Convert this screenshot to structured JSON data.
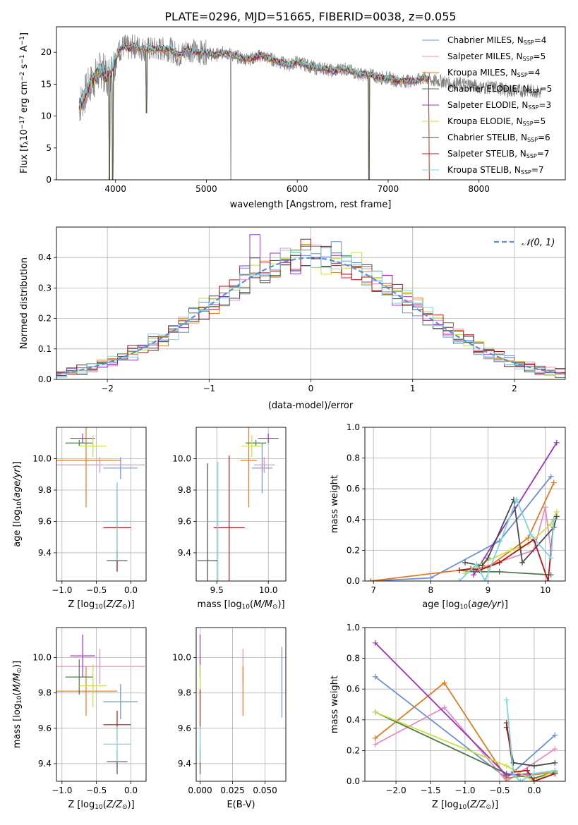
{
  "figure_title": "PLATE=0296, MJD=51665, FIBERID=0038, z=0.055",
  "series_meta": [
    {
      "label_main": "Chabrier MILES, N",
      "label_sub": "SSP",
      "label_tail": "=4",
      "color": "#6A8FDB"
    },
    {
      "label_main": "Salpeter MILES, N",
      "label_sub": "SSP",
      "label_tail": "=5",
      "color": "#E88DC1"
    },
    {
      "label_main": "Kroupa MILES, N",
      "label_sub": "SSP",
      "label_tail": "=4",
      "color": "#E07B20"
    },
    {
      "label_main": "Chabrier ELODIE, N",
      "label_sub": "SSP",
      "label_tail": "=5",
      "color": "#4C7A4C"
    },
    {
      "label_main": "Salpeter ELODIE, N",
      "label_sub": "SSP",
      "label_tail": "=3",
      "color": "#9B30C0"
    },
    {
      "label_main": "Kroupa ELODIE, N",
      "label_sub": "SSP",
      "label_tail": "=5",
      "color": "#C8E040"
    },
    {
      "label_main": "Chabrier STELIB, N",
      "label_sub": "SSP",
      "label_tail": "=6",
      "color": "#4A4A4A"
    },
    {
      "label_main": "Salpeter STELIB, N",
      "label_sub": "SSP",
      "label_tail": "=7",
      "color": "#B01818"
    },
    {
      "label_main": "Kroupa STELIB, N",
      "label_sub": "SSP",
      "label_tail": "=7",
      "color": "#78D8E0"
    }
  ],
  "chart_data": [
    {
      "type": "line",
      "id": "spectrum",
      "xlabel": "wavelength [Angstrom, rest frame]",
      "ylabel_main": "Flux [f",
      "ylabel_sub": "λ",
      "ylabel_mid": "10",
      "ylabel_sup1": "−17",
      "ylabel_rest": " erg cm",
      "ylabel_sup2": "−2",
      "ylabel_s": " s",
      "ylabel_sup3": "−1",
      "ylabel_a": " A",
      "ylabel_sup4": "−1",
      "ylabel_end": "]",
      "xlim": [
        3350,
        8950
      ],
      "ylim": [
        0,
        24
      ],
      "xticks": [
        4000,
        5000,
        6000,
        7000,
        8000
      ],
      "yticks": [
        0,
        5,
        10,
        15,
        20
      ],
      "data_color": "#808080",
      "data_x": [
        3600,
        3650,
        3700,
        3750,
        3800,
        3850,
        3900,
        3950,
        4000,
        4050,
        4100,
        4150,
        4200,
        4300,
        4400,
        4500,
        4600,
        4700,
        4800,
        4900,
        5000,
        5100,
        5200,
        5300,
        5400,
        5500,
        5600,
        5700,
        5800,
        5900,
        6000,
        6100,
        6200,
        6300,
        6400,
        6500,
        6600,
        6700,
        6800,
        6900,
        7000,
        7100,
        7200,
        7300,
        7400,
        7500,
        7600,
        7700,
        7800,
        7900,
        8000,
        8100,
        8200,
        8300,
        8400,
        8500,
        8600,
        8700
      ],
      "data_y": [
        11.5,
        13,
        14.5,
        15.5,
        16.5,
        17.5,
        16,
        17,
        19,
        20.5,
        21,
        20.5,
        21,
        20.5,
        20.5,
        20.5,
        20.5,
        19.5,
        20.5,
        20,
        20,
        19.5,
        20,
        19.5,
        19,
        19,
        19.5,
        19,
        18.5,
        18,
        18.5,
        18,
        17.5,
        17.5,
        17,
        17.5,
        17,
        16.5,
        16.5,
        16,
        16,
        15.5,
        15.5,
        15.5,
        16,
        15.5,
        15.5,
        15,
        15,
        15,
        14.5,
        14.5,
        14.5,
        14,
        14,
        14,
        14,
        13.5
      ],
      "model_xrange": [
        3600,
        7450
      ],
      "dips": [
        {
          "x": 3934,
          "y": 0
        },
        {
          "x": 3968,
          "y": 0
        },
        {
          "x": 4340,
          "y": 10.5
        },
        {
          "x": 6790,
          "y": 0
        }
      ]
    },
    {
      "type": "histogram",
      "id": "residuals",
      "xlabel": "(data-model)/error",
      "ylabel": "Normed distribution",
      "xlim": [
        -2.5,
        2.5
      ],
      "ylim": [
        0,
        0.5
      ],
      "xticks": [
        -2,
        -1,
        0,
        1,
        2
      ],
      "yticks": [
        0,
        0.1,
        0.2,
        0.3,
        0.4
      ],
      "bin_width": 0.1,
      "gaussian_legend": "𝒩(0, 1)",
      "gaussian_color": "#5B8DD9"
    },
    {
      "type": "errorbar",
      "id": "age_vs_Z",
      "xlabel_main": "Z [log",
      "xlabel_sub": "10",
      "xlabel_rest": "(Z/Z",
      "xlabel_sub2": "⊙",
      "xlabel_end": ")]",
      "ylabel_main": "age  [log",
      "ylabel_sub": "10",
      "ylabel_rest": "(age/yr)]",
      "xlim": [
        -1.08,
        0.22
      ],
      "ylim": [
        9.22,
        10.2
      ],
      "xticks": [
        -1.0,
        -0.5,
        0.0
      ],
      "xtick_labels": [
        "−1.0",
        "−0.5",
        "0.0"
      ],
      "yticks": [
        9.4,
        9.6,
        9.8,
        10.0
      ],
      "points": [
        {
          "series": 0,
          "x": -0.15,
          "y": 9.94,
          "xerr": 0.25,
          "yerr": 0.07
        },
        {
          "series": 1,
          "x": -0.45,
          "y": 9.96,
          "xerr": 0.65,
          "yerr": 0.05
        },
        {
          "series": 2,
          "x": -0.65,
          "y": 9.99,
          "xerr": 0.5,
          "yerr": 0.3
        },
        {
          "series": 3,
          "x": -0.75,
          "y": 10.1,
          "xerr": 0.2,
          "yerr": 0.02
        },
        {
          "series": 4,
          "x": -0.7,
          "y": 10.13,
          "xerr": 0.18,
          "yerr": 0.03
        },
        {
          "series": 5,
          "x": -0.55,
          "y": 10.08,
          "xerr": 0.2,
          "yerr": 0.07
        },
        {
          "series": 6,
          "x": -0.2,
          "y": 9.35,
          "xerr": 0.15,
          "yerr": 0.07
        },
        {
          "series": 7,
          "x": -0.2,
          "y": 9.56,
          "xerr": 0.2,
          "yerr": 0.28
        },
        {
          "series": 8,
          "x": -0.2,
          "y": 9.6,
          "xerr": 0.2,
          "yerr": 0.25
        }
      ]
    },
    {
      "type": "errorbar",
      "id": "age_vs_mass",
      "xlabel_main": "mass [log",
      "xlabel_sub": "10",
      "xlabel_rest": "(M/M",
      "xlabel_sub2": "⊙",
      "xlabel_end": ")]",
      "xlim": [
        9.3,
        10.17
      ],
      "ylim": [
        9.22,
        10.2
      ],
      "xticks": [
        9.5,
        10.0
      ],
      "xtick_labels": [
        "9.5",
        "10.0"
      ],
      "yticks": [
        9.4,
        9.6,
        9.8,
        10.0
      ],
      "points": [
        {
          "series": 0,
          "x": 9.94,
          "y": 9.94,
          "xerr": 0.1,
          "yerr": 0.16
        },
        {
          "series": 1,
          "x": 9.96,
          "y": 9.96,
          "xerr": 0.1,
          "yerr": 0.05
        },
        {
          "series": 2,
          "x": 9.81,
          "y": 9.99,
          "xerr": 0.08,
          "yerr": 0.3
        },
        {
          "series": 3,
          "x": 9.88,
          "y": 10.1,
          "xerr": 0.1,
          "yerr": 0.02
        },
        {
          "series": 4,
          "x": 10.0,
          "y": 10.13,
          "xerr": 0.1,
          "yerr": 0.03
        },
        {
          "series": 5,
          "x": 9.84,
          "y": 10.08,
          "xerr": 0.1,
          "yerr": 0.07
        },
        {
          "series": 6,
          "x": 9.41,
          "y": 9.35,
          "xerr": 0.1,
          "yerr": 0.62
        },
        {
          "series": 7,
          "x": 9.62,
          "y": 9.56,
          "xerr": 0.15,
          "yerr": 0.46
        },
        {
          "series": 8,
          "x": 9.51,
          "y": 9.6,
          "xerr": 0.1,
          "yerr": 0.38
        }
      ]
    },
    {
      "type": "line",
      "id": "massweight_vs_age",
      "xlabel_main": "age  [log",
      "xlabel_sub": "10",
      "xlabel_rest": "(age/yr)]",
      "ylabel": "mass weight",
      "xlim": [
        6.85,
        10.35
      ],
      "ylim": [
        0,
        1.0
      ],
      "xticks": [
        7,
        8,
        9,
        10
      ],
      "yticks": [
        0.0,
        0.2,
        0.4,
        0.6,
        0.8,
        1.0
      ],
      "series": [
        {
          "series": 0,
          "x": [
            6.95,
            8.0,
            9.2,
            10.1
          ],
          "y": [
            0.0,
            0.02,
            0.26,
            0.68
          ]
        },
        {
          "series": 1,
          "x": [
            8.6,
            9.8,
            10.0,
            10.1
          ],
          "y": [
            0.05,
            0.2,
            0.48,
            0.2
          ]
        },
        {
          "series": 2,
          "x": [
            6.95,
            8.5,
            9.0,
            9.7,
            10.15
          ],
          "y": [
            0.0,
            0.07,
            0.09,
            0.28,
            0.64
          ]
        },
        {
          "series": 3,
          "x": [
            8.5,
            8.75,
            9.2,
            10.1
          ],
          "y": [
            0.07,
            0.06,
            0.06,
            0.04
          ]
        },
        {
          "series": 4,
          "x": [
            8.75,
            10.2
          ],
          "y": [
            0.04,
            0.9
          ]
        },
        {
          "series": 5,
          "x": [
            8.6,
            8.8,
            9.4,
            9.7,
            10.1,
            10.2
          ],
          "y": [
            0.05,
            0.1,
            0.2,
            0.24,
            0.37,
            0.45
          ]
        },
        {
          "series": 6,
          "x": [
            8.6,
            8.9,
            9.0,
            9.45,
            9.6,
            10.15,
            10.2
          ],
          "y": [
            0.12,
            0.1,
            0.15,
            0.53,
            0.12,
            0.35,
            0.42
          ]
        },
        {
          "series": 7,
          "x": [
            8.5,
            8.7,
            8.85,
            9.2,
            9.8,
            10.05,
            10.15
          ],
          "y": [
            0.07,
            0.08,
            0.07,
            0.12,
            0.27,
            0.0,
            0.4
          ]
        },
        {
          "series": 8,
          "x": [
            8.5,
            8.8,
            8.95,
            9.5,
            9.75,
            10.1,
            10.15
          ],
          "y": [
            0.0,
            0.11,
            0.0,
            0.53,
            0.3,
            0.15,
            0.4
          ]
        }
      ]
    },
    {
      "type": "errorbar",
      "id": "mass_vs_Z",
      "xlabel_main": "Z [log",
      "xlabel_sub": "10",
      "xlabel_rest": "(Z/Z",
      "xlabel_sub2": "⊙",
      "xlabel_end": ")]",
      "ylabel_main": "mass [log",
      "ylabel_sub": "10",
      "ylabel_rest": "(M/M",
      "ylabel_sub2": "⊙",
      "ylabel_end": ")]",
      "xlim": [
        -1.08,
        0.22
      ],
      "ylim": [
        9.3,
        10.17
      ],
      "xticks": [
        -1.0,
        -0.5,
        0.0
      ],
      "xtick_labels": [
        "−1.0",
        "−0.5",
        "0.0"
      ],
      "yticks": [
        9.4,
        9.6,
        9.8,
        10.0
      ],
      "points": [
        {
          "series": 0,
          "x": -0.15,
          "y": 9.75,
          "xerr": 0.25,
          "yerr": 0.1
        },
        {
          "series": 1,
          "x": -0.45,
          "y": 9.95,
          "xerr": 0.65,
          "yerr": 0.1
        },
        {
          "series": 2,
          "x": -0.65,
          "y": 9.81,
          "xerr": 0.45,
          "yerr": 0.14
        },
        {
          "series": 3,
          "x": -0.75,
          "y": 9.89,
          "xerr": 0.2,
          "yerr": 0.1
        },
        {
          "series": 4,
          "x": -0.7,
          "y": 10.01,
          "xerr": 0.18,
          "yerr": 0.12
        },
        {
          "series": 5,
          "x": -0.55,
          "y": 9.84,
          "xerr": 0.2,
          "yerr": 0.12
        },
        {
          "series": 6,
          "x": -0.2,
          "y": 9.41,
          "xerr": 0.15,
          "yerr": 0.07
        },
        {
          "series": 7,
          "x": -0.2,
          "y": 9.62,
          "xerr": 0.2,
          "yerr": 0.08
        },
        {
          "series": 8,
          "x": -0.2,
          "y": 9.51,
          "xerr": 0.2,
          "yerr": 0.1
        }
      ]
    },
    {
      "type": "errorbar",
      "id": "mass_vs_ebv",
      "xlabel": "E(B-V)",
      "xlim": [
        -0.003,
        0.066
      ],
      "ylim": [
        9.3,
        10.17
      ],
      "xticks": [
        0.0,
        0.025,
        0.05
      ],
      "xtick_labels": [
        "0.000",
        "0.025",
        "0.050"
      ],
      "yticks": [
        9.4,
        9.6,
        9.8,
        10.0
      ],
      "points": [
        {
          "series": 0,
          "x": 0.063,
          "y": 9.86,
          "xerr": 0,
          "yerr": 0.2
        },
        {
          "series": 1,
          "x": 0.033,
          "y": 9.95,
          "xerr": 0,
          "yerr": 0.1
        },
        {
          "series": 2,
          "x": 0.033,
          "y": 9.81,
          "xerr": 0,
          "yerr": 0.14
        },
        {
          "series": 3,
          "x": 0.0,
          "y": 9.89,
          "xerr": 0,
          "yerr": 0.1
        },
        {
          "series": 4,
          "x": 0.0,
          "y": 10.01,
          "xerr": 0,
          "yerr": 0.12
        },
        {
          "series": 5,
          "x": 0.0,
          "y": 9.84,
          "xerr": 0,
          "yerr": 0.12
        },
        {
          "series": 6,
          "x": 0.0,
          "y": 9.41,
          "xerr": 0,
          "yerr": 0.07
        },
        {
          "series": 7,
          "x": 0.0,
          "y": 9.62,
          "xerr": 0,
          "yerr": 0.2
        },
        {
          "series": 8,
          "x": 0.0,
          "y": 9.51,
          "xerr": 0,
          "yerr": 0.1
        }
      ]
    },
    {
      "type": "line",
      "id": "massweight_vs_Z",
      "xlabel_main": "Z [log",
      "xlabel_sub": "10",
      "xlabel_rest": "(Z/Z",
      "xlabel_sub2": "⊙",
      "xlabel_end": ")]",
      "ylabel": "mass weight",
      "xlim": [
        -2.45,
        0.45
      ],
      "ylim": [
        0,
        1.0
      ],
      "xticks": [
        -2.0,
        -1.5,
        -1.0,
        -0.5,
        0.0
      ],
      "xtick_labels": [
        "−2.0",
        "−1.5",
        "−1.0",
        "−0.5",
        "0.0"
      ],
      "yticks": [
        0.0,
        0.2,
        0.4,
        0.6,
        0.8,
        1.0
      ],
      "series": [
        {
          "series": 0,
          "x": [
            -2.3,
            -0.4,
            0.3
          ],
          "y": [
            0.68,
            0.02,
            0.3
          ]
        },
        {
          "series": 1,
          "x": [
            -2.3,
            -1.3,
            -0.4,
            0.3
          ],
          "y": [
            0.24,
            0.48,
            0.0,
            0.21
          ]
        },
        {
          "series": 2,
          "x": [
            -2.3,
            -1.3,
            -0.4,
            0.3
          ],
          "y": [
            0.28,
            0.64,
            0.02,
            0.06
          ]
        },
        {
          "series": 3,
          "x": [
            -2.3,
            -0.4,
            0.0,
            0.3
          ],
          "y": [
            0.45,
            0.05,
            0.02,
            0.06
          ]
        },
        {
          "series": 4,
          "x": [
            -2.3,
            -0.4,
            0.0
          ],
          "y": [
            0.9,
            0.04,
            0.05
          ]
        },
        {
          "series": 5,
          "x": [
            -2.3,
            -0.4,
            0.0,
            0.3
          ],
          "y": [
            0.45,
            0.1,
            0.0,
            0.07
          ]
        },
        {
          "series": 6,
          "x": [
            -0.4,
            -0.3,
            0.0,
            0.3
          ],
          "y": [
            0.35,
            0.12,
            0.1,
            0.12
          ]
        },
        {
          "series": 7,
          "x": [
            -0.4,
            -0.3,
            -0.1,
            0.0,
            0.3
          ],
          "y": [
            0.38,
            0.06,
            0.07,
            0.0,
            0.05
          ]
        },
        {
          "series": 8,
          "x": [
            -0.4,
            -0.3,
            -0.2,
            0.0,
            0.3
          ],
          "y": [
            0.53,
            0.04,
            0.0,
            0.05,
            0.07
          ]
        }
      ]
    }
  ]
}
